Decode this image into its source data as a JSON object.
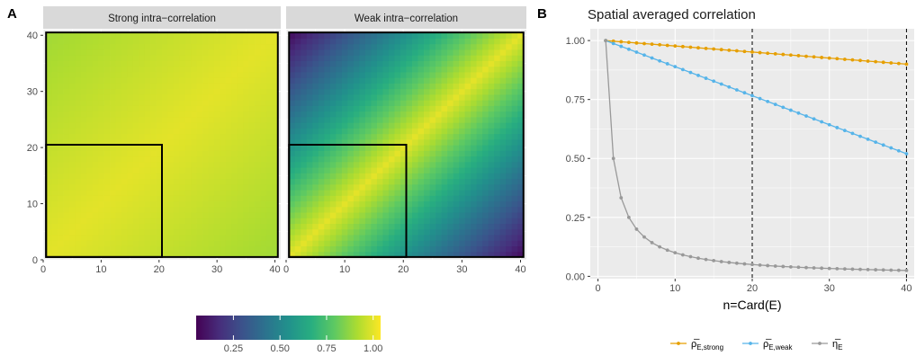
{
  "panel_labels": [
    "A",
    "B"
  ],
  "colorbar": {
    "ticks": [
      0.25,
      0.5,
      0.75,
      1.0
    ],
    "tick_labels": [
      "0.25",
      "0.50",
      "0.75",
      "1.00"
    ],
    "range": [
      0.05,
      1.04
    ],
    "colors": [
      "#440154",
      "#472d7b",
      "#3b528b",
      "#2c728e",
      "#21918c",
      "#28ae80",
      "#5ec962",
      "#addc30",
      "#fde725"
    ]
  },
  "chart_data": [
    {
      "type": "heatmap",
      "title": "Strong intra−correlation",
      "n": 40,
      "value_range": [
        0.9,
        1.0
      ],
      "xlim": [
        0,
        41
      ],
      "ylim": [
        0,
        41
      ],
      "x_ticks": [
        0,
        10,
        20,
        30,
        40
      ],
      "y_ticks": [
        0,
        10,
        20,
        30,
        40
      ],
      "x_tick_labels": [
        "0",
        "10",
        "20",
        "30",
        "40"
      ],
      "y_tick_labels": [
        "0",
        "10",
        "20",
        "30",
        "40"
      ],
      "grid": true
    },
    {
      "type": "heatmap",
      "title": "Weak intra−correlation",
      "n": 40,
      "value_range": [
        0.1,
        1.0
      ],
      "xlim": [
        0,
        41
      ],
      "ylim": [
        0,
        41
      ],
      "x_ticks": [
        0,
        10,
        20,
        30,
        40
      ],
      "x_tick_labels": [
        "0",
        "10",
        "20",
        "30",
        "40"
      ],
      "grid": true
    },
    {
      "type": "line",
      "title": "Spatial averaged correlation",
      "xlabel": "n=Card(E)",
      "ylabel": "",
      "xlim": [
        -1,
        41
      ],
      "ylim": [
        -0.01,
        1.05
      ],
      "x_ticks": [
        0,
        10,
        20,
        30,
        40
      ],
      "y_ticks": [
        0,
        0.25,
        0.5,
        0.75,
        1.0
      ],
      "x_tick_labels": [
        "0",
        "10",
        "20",
        "30",
        "40"
      ],
      "y_tick_labels": [
        "0.00",
        "0.25",
        "0.50",
        "0.75",
        "1.00"
      ],
      "vlines": [
        20,
        40
      ],
      "legend_position": "bottom",
      "grid": true,
      "x": [
        1,
        2,
        3,
        4,
        5,
        6,
        7,
        8,
        9,
        10,
        11,
        12,
        13,
        14,
        15,
        16,
        17,
        18,
        19,
        20,
        21,
        22,
        23,
        24,
        25,
        26,
        27,
        28,
        29,
        30,
        31,
        32,
        33,
        34,
        35,
        36,
        37,
        38,
        39,
        40
      ],
      "series": [
        {
          "name": "ρ̅",
          "sub": "E,strong",
          "color": "#e69f00",
          "values": [
            1.0,
            0.9974,
            0.9949,
            0.9923,
            0.9897,
            0.9872,
            0.9846,
            0.9821,
            0.9795,
            0.9769,
            0.9744,
            0.9718,
            0.9692,
            0.9667,
            0.9641,
            0.9615,
            0.959,
            0.9564,
            0.9538,
            0.9513,
            0.9487,
            0.9462,
            0.9436,
            0.941,
            0.9385,
            0.9359,
            0.9333,
            0.9308,
            0.9282,
            0.9256,
            0.9231,
            0.9205,
            0.9179,
            0.9154,
            0.9128,
            0.9103,
            0.9077,
            0.9051,
            0.9026,
            0.9
          ]
        },
        {
          "name": "ρ̅",
          "sub": "E,weak",
          "color": "#56b4e9",
          "values": [
            1.0,
            0.9877,
            0.9754,
            0.9631,
            0.9508,
            0.9385,
            0.9262,
            0.9138,
            0.9015,
            0.8892,
            0.8769,
            0.8646,
            0.8523,
            0.84,
            0.8277,
            0.8154,
            0.8031,
            0.7908,
            0.7785,
            0.7662,
            0.7538,
            0.7415,
            0.7292,
            0.7169,
            0.7046,
            0.6923,
            0.68,
            0.6677,
            0.6554,
            0.6431,
            0.6308,
            0.6185,
            0.6062,
            0.5938,
            0.5815,
            0.5692,
            0.5569,
            0.5446,
            0.5323,
            0.52
          ]
        },
        {
          "name": "η̅",
          "sub": "E",
          "color": "#999999",
          "values": [
            1.0,
            0.5,
            0.3333,
            0.25,
            0.2,
            0.1667,
            0.1429,
            0.125,
            0.1111,
            0.1,
            0.0909,
            0.0833,
            0.0769,
            0.0714,
            0.0667,
            0.0625,
            0.0588,
            0.0556,
            0.0526,
            0.05,
            0.0476,
            0.0455,
            0.0435,
            0.0417,
            0.04,
            0.0385,
            0.037,
            0.0357,
            0.0345,
            0.0333,
            0.0323,
            0.0313,
            0.0303,
            0.0294,
            0.0286,
            0.0278,
            0.027,
            0.0263,
            0.0256,
            0.025
          ]
        }
      ]
    }
  ]
}
